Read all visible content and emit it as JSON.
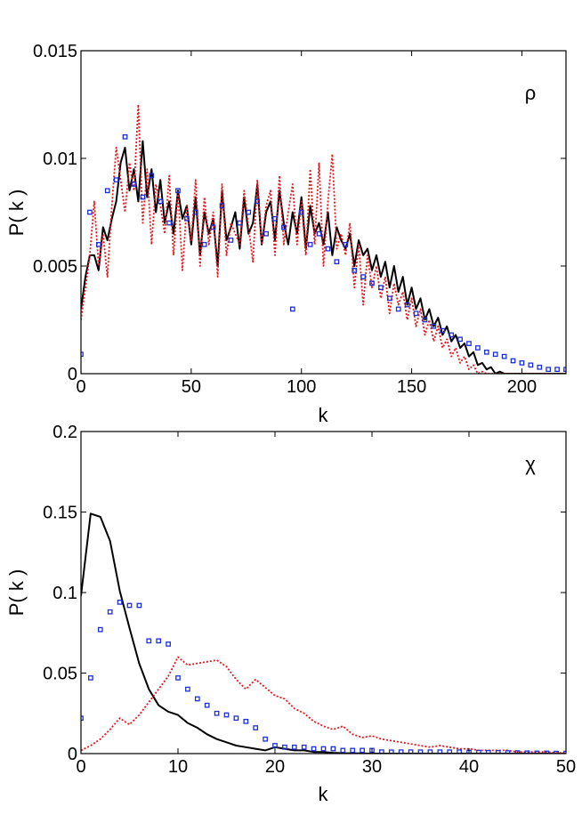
{
  "chart_data": [
    {
      "type": "line",
      "panel_label": "ρ",
      "xlabel": "k",
      "ylabel": "P( k )",
      "xlim": [
        0,
        220
      ],
      "ylim": [
        0,
        0.015
      ],
      "xticks": [
        0,
        50,
        100,
        150,
        200
      ],
      "xtick_labels": [
        "0",
        "50",
        "100",
        "150",
        "200"
      ],
      "yticks": [
        0,
        0.005,
        0.01,
        0.015
      ],
      "ytick_labels": [
        "0",
        "0.005",
        "0.01",
        "0.015"
      ],
      "grid": false,
      "series": [
        {
          "name": "solid black",
          "style": "line",
          "color": "#000000",
          "dash": "",
          "x": [
            0,
            2,
            4,
            6,
            8,
            10,
            12,
            14,
            16,
            18,
            20,
            22,
            24,
            26,
            28,
            30,
            32,
            34,
            36,
            38,
            40,
            42,
            44,
            46,
            48,
            50,
            52,
            54,
            56,
            58,
            60,
            62,
            64,
            66,
            68,
            70,
            72,
            74,
            76,
            78,
            80,
            82,
            84,
            86,
            88,
            90,
            92,
            94,
            96,
            98,
            100,
            102,
            104,
            106,
            108,
            110,
            112,
            114,
            116,
            118,
            120,
            122,
            124,
            126,
            128,
            130,
            132,
            134,
            136,
            138,
            140,
            142,
            144,
            146,
            148,
            150,
            152,
            154,
            156,
            158,
            160,
            162,
            164,
            166,
            168,
            170,
            172,
            174,
            176,
            178,
            180,
            182,
            184,
            186,
            188,
            190,
            192,
            194,
            196,
            198,
            200,
            202,
            204,
            206,
            208,
            210,
            212,
            214,
            216,
            218,
            220
          ],
          "values": [
            0.003,
            0.0045,
            0.0055,
            0.0055,
            0.0048,
            0.0068,
            0.0062,
            0.0072,
            0.008,
            0.0098,
            0.0105,
            0.0085,
            0.0095,
            0.008,
            0.0108,
            0.0082,
            0.0095,
            0.0075,
            0.009,
            0.007,
            0.008,
            0.0065,
            0.0085,
            0.0072,
            0.0078,
            0.006,
            0.0082,
            0.0055,
            0.0075,
            0.0065,
            0.0072,
            0.005,
            0.0085,
            0.0062,
            0.0068,
            0.0075,
            0.0058,
            0.0082,
            0.0065,
            0.007,
            0.0088,
            0.006,
            0.0075,
            0.008,
            0.0062,
            0.0085,
            0.007,
            0.006,
            0.0075,
            0.0065,
            0.0082,
            0.0058,
            0.0078,
            0.0065,
            0.007,
            0.006,
            0.0075,
            0.0055,
            0.0068,
            0.0062,
            0.0058,
            0.0065,
            0.005,
            0.0062,
            0.0055,
            0.0058,
            0.0048,
            0.0055,
            0.0045,
            0.0052,
            0.004,
            0.005,
            0.0038,
            0.0045,
            0.0032,
            0.004,
            0.003,
            0.0035,
            0.0025,
            0.003,
            0.0022,
            0.0026,
            0.0018,
            0.0022,
            0.0015,
            0.0018,
            0.0012,
            0.0014,
            0.0008,
            0.001,
            0.0004,
            0.0005,
            0.0002,
            0.0003,
            0,
            0.0001,
            0,
            0,
            0,
            0,
            0,
            0,
            0,
            0,
            0,
            0,
            0,
            0,
            0,
            0,
            0
          ]
        },
        {
          "name": "dotted red",
          "style": "line",
          "color": "#e8141c",
          "dash": "2,2",
          "x": [
            0,
            2,
            4,
            6,
            8,
            10,
            12,
            14,
            16,
            18,
            20,
            22,
            24,
            26,
            28,
            30,
            32,
            34,
            36,
            38,
            40,
            42,
            44,
            46,
            48,
            50,
            52,
            54,
            56,
            58,
            60,
            62,
            64,
            66,
            68,
            70,
            72,
            74,
            76,
            78,
            80,
            82,
            84,
            86,
            88,
            90,
            92,
            94,
            96,
            98,
            100,
            102,
            104,
            106,
            108,
            110,
            112,
            114,
            116,
            118,
            120,
            122,
            124,
            126,
            128,
            130,
            132,
            134,
            136,
            138,
            140,
            142,
            144,
            146,
            148,
            150,
            152,
            154,
            156,
            158,
            160,
            162,
            164,
            166,
            168,
            170,
            172,
            174,
            176,
            178,
            180,
            182,
            184,
            186,
            188,
            190,
            192,
            194,
            196,
            198,
            200,
            202,
            204,
            206,
            208,
            210,
            212,
            214,
            216,
            218,
            220
          ],
          "values": [
            0.0025,
            0.004,
            0.0055,
            0.008,
            0.005,
            0.0065,
            0.0045,
            0.0078,
            0.0105,
            0.009,
            0.0075,
            0.0098,
            0.0085,
            0.0125,
            0.007,
            0.0095,
            0.006,
            0.0088,
            0.0078,
            0.0065,
            0.0092,
            0.0055,
            0.0085,
            0.0048,
            0.0078,
            0.0062,
            0.009,
            0.005,
            0.0082,
            0.006,
            0.0075,
            0.0045,
            0.0088,
            0.0055,
            0.007,
            0.0065,
            0.006,
            0.0085,
            0.0068,
            0.0052,
            0.009,
            0.006,
            0.0078,
            0.0085,
            0.0055,
            0.0092,
            0.006,
            0.0075,
            0.0088,
            0.006,
            0.008,
            0.0055,
            0.0095,
            0.006,
            0.0098,
            0.005,
            0.008,
            0.0102,
            0.0058,
            0.0065,
            0.0055,
            0.007,
            0.004,
            0.006,
            0.0032,
            0.0055,
            0.004,
            0.005,
            0.0035,
            0.0045,
            0.0028,
            0.0042,
            0.0032,
            0.0038,
            0.0025,
            0.0035,
            0.0022,
            0.003,
            0.0018,
            0.0025,
            0.0015,
            0.0022,
            0.0012,
            0.0016,
            0.0008,
            0.0012,
            0.0005,
            0.0008,
            0.0002,
            0.0004,
            0,
            0.0001,
            0,
            0,
            0,
            0,
            0,
            0,
            0,
            0,
            0,
            0,
            0,
            0,
            0,
            0,
            0,
            0,
            0,
            0,
            0
          ]
        },
        {
          "name": "blue squares",
          "style": "markers",
          "color": "#1a2edc",
          "x": [
            0,
            4,
            8,
            12,
            16,
            20,
            24,
            28,
            32,
            36,
            40,
            44,
            48,
            52,
            56,
            60,
            64,
            68,
            72,
            76,
            80,
            84,
            88,
            92,
            96,
            100,
            104,
            108,
            112,
            116,
            120,
            124,
            128,
            132,
            136,
            140,
            144,
            148,
            152,
            156,
            160,
            164,
            168,
            172,
            176,
            180,
            184,
            188,
            192,
            196,
            200,
            204,
            208,
            212,
            216,
            220
          ],
          "values": [
            0.0009,
            0.0075,
            0.006,
            0.0085,
            0.009,
            0.011,
            0.0088,
            0.0082,
            0.0092,
            0.008,
            0.007,
            0.0085,
            0.0072,
            0.0075,
            0.006,
            0.0068,
            0.0078,
            0.0062,
            0.007,
            0.0075,
            0.008,
            0.0065,
            0.0072,
            0.0068,
            0.003,
            0.0075,
            0.006,
            0.0065,
            0.0058,
            0.0052,
            0.006,
            0.0048,
            0.0045,
            0.0042,
            0.004,
            0.0035,
            0.003,
            0.0032,
            0.0028,
            0.0025,
            0.0022,
            0.002,
            0.0018,
            0.0016,
            0.0014,
            0.0012,
            0.001,
            0.0009,
            0.0008,
            0.0006,
            0.0005,
            0.0004,
            0.0003,
            0.0002,
            0.0002,
            0.0002
          ]
        }
      ]
    },
    {
      "type": "line",
      "panel_label": "χ",
      "xlabel": "k",
      "ylabel": "P( k )",
      "xlim": [
        0,
        50
      ],
      "ylim": [
        0,
        0.2
      ],
      "xticks": [
        0,
        10,
        20,
        30,
        40,
        50
      ],
      "xtick_labels": [
        "0",
        "10",
        "20",
        "30",
        "40",
        "50"
      ],
      "yticks": [
        0,
        0.05,
        0.1,
        0.15,
        0.2
      ],
      "ytick_labels": [
        "0",
        "0.05",
        "0.1",
        "0.15",
        "0.2"
      ],
      "grid": false,
      "series": [
        {
          "name": "solid black",
          "style": "line",
          "color": "#000000",
          "dash": "",
          "x": [
            0,
            1,
            2,
            3,
            4,
            5,
            6,
            7,
            8,
            9,
            10,
            11,
            12,
            13,
            14,
            15,
            16,
            17,
            18,
            19,
            20,
            21,
            22,
            23,
            24,
            25,
            26,
            27,
            28,
            29,
            30,
            31,
            32,
            33,
            34,
            35,
            36,
            37,
            38,
            39,
            40,
            41,
            42,
            43,
            44,
            45,
            46,
            47,
            48,
            49,
            50
          ],
          "values": [
            0.098,
            0.149,
            0.147,
            0.132,
            0.101,
            0.078,
            0.056,
            0.04,
            0.03,
            0.026,
            0.024,
            0.019,
            0.016,
            0.012,
            0.009,
            0.007,
            0.005,
            0.004,
            0.003,
            0.002,
            0.004,
            0.003,
            0.002,
            0.002,
            0.001,
            0.001,
            0.0005,
            0.0003,
            0.0002,
            0.0001,
            0,
            0,
            0,
            0,
            0,
            0,
            0,
            0,
            0,
            0,
            0,
            0,
            0,
            0,
            0,
            0,
            0,
            0,
            0,
            0,
            0
          ]
        },
        {
          "name": "dotted red",
          "style": "line",
          "color": "#e8141c",
          "dash": "2,2",
          "x": [
            0,
            1,
            2,
            3,
            4,
            5,
            6,
            7,
            8,
            9,
            10,
            11,
            12,
            13,
            14,
            15,
            16,
            17,
            18,
            19,
            20,
            21,
            22,
            23,
            24,
            25,
            26,
            27,
            28,
            29,
            30,
            31,
            32,
            33,
            34,
            35,
            36,
            37,
            38,
            39,
            40,
            41,
            42,
            43,
            44,
            45,
            46,
            47,
            48,
            49,
            50
          ],
          "values": [
            0.002,
            0.005,
            0.009,
            0.015,
            0.022,
            0.018,
            0.024,
            0.032,
            0.04,
            0.048,
            0.06,
            0.055,
            0.056,
            0.057,
            0.058,
            0.054,
            0.046,
            0.04,
            0.046,
            0.041,
            0.036,
            0.034,
            0.028,
            0.025,
            0.02,
            0.017,
            0.015,
            0.017,
            0.012,
            0.01,
            0.011,
            0.009,
            0.008,
            0.007,
            0.006,
            0.005,
            0.004,
            0.005,
            0.004,
            0.003,
            0.003,
            0.002,
            0.002,
            0.002,
            0.002,
            0.001,
            0.001,
            0.001,
            0.001,
            0.0005,
            0.0005
          ]
        },
        {
          "name": "blue squares",
          "style": "markers",
          "color": "#1a2edc",
          "x": [
            0,
            1,
            2,
            3,
            4,
            5,
            6,
            7,
            8,
            9,
            10,
            11,
            12,
            13,
            14,
            15,
            16,
            17,
            18,
            19,
            20,
            21,
            22,
            23,
            24,
            25,
            26,
            27,
            28,
            29,
            30,
            31,
            32,
            33,
            34,
            35,
            36,
            37,
            38,
            39,
            40,
            41,
            42,
            43,
            44,
            45,
            46,
            47,
            48,
            49,
            50
          ],
          "values": [
            0.022,
            0.047,
            0.077,
            0.088,
            0.094,
            0.092,
            0.092,
            0.07,
            0.07,
            0.068,
            0.047,
            0.04,
            0.034,
            0.03,
            0.025,
            0.024,
            0.022,
            0.02,
            0.016,
            0.009,
            0.005,
            0.004,
            0.004,
            0.004,
            0.003,
            0.003,
            0.003,
            0.002,
            0.002,
            0.002,
            0.002,
            0.001,
            0.001,
            0.001,
            0.001,
            0.001,
            0.001,
            0.001,
            0.001,
            0.001,
            0.0008,
            0.0008,
            0.0007,
            0.0006,
            0.0005,
            0.0005,
            0.0004,
            0.0003,
            0.0003,
            0.0002,
            0.0002
          ]
        }
      ]
    }
  ]
}
